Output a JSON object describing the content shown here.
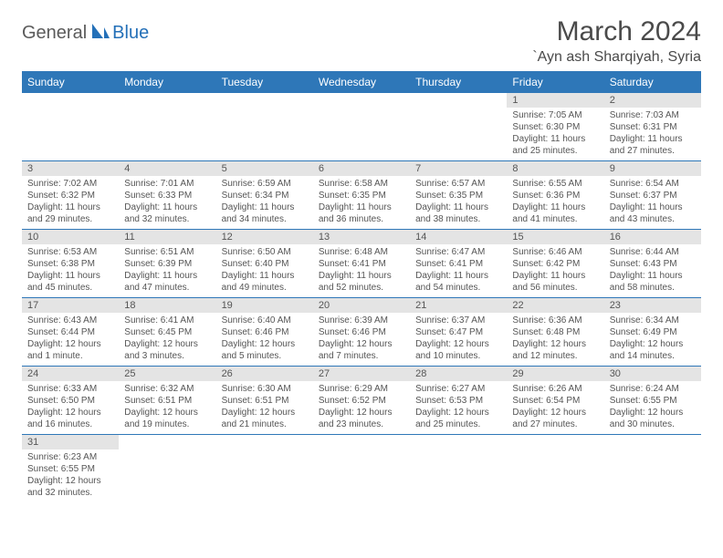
{
  "logo": {
    "part1": "General",
    "part2": "Blue"
  },
  "title": "March 2024",
  "location": "`Ayn ash Sharqiyah, Syria",
  "colors": {
    "header_bg": "#2e77b8",
    "header_fg": "#ffffff",
    "daynum_bg": "#e4e4e4",
    "row_border": "#2e77b8",
    "logo_blue": "#2470b8",
    "text": "#4a4a4a"
  },
  "weekdays": [
    "Sunday",
    "Monday",
    "Tuesday",
    "Wednesday",
    "Thursday",
    "Friday",
    "Saturday"
  ],
  "weeks": [
    [
      null,
      null,
      null,
      null,
      null,
      {
        "n": "1",
        "sr": "Sunrise: 7:05 AM",
        "ss": "Sunset: 6:30 PM",
        "dl": "Daylight: 11 hours and 25 minutes."
      },
      {
        "n": "2",
        "sr": "Sunrise: 7:03 AM",
        "ss": "Sunset: 6:31 PM",
        "dl": "Daylight: 11 hours and 27 minutes."
      }
    ],
    [
      {
        "n": "3",
        "sr": "Sunrise: 7:02 AM",
        "ss": "Sunset: 6:32 PM",
        "dl": "Daylight: 11 hours and 29 minutes."
      },
      {
        "n": "4",
        "sr": "Sunrise: 7:01 AM",
        "ss": "Sunset: 6:33 PM",
        "dl": "Daylight: 11 hours and 32 minutes."
      },
      {
        "n": "5",
        "sr": "Sunrise: 6:59 AM",
        "ss": "Sunset: 6:34 PM",
        "dl": "Daylight: 11 hours and 34 minutes."
      },
      {
        "n": "6",
        "sr": "Sunrise: 6:58 AM",
        "ss": "Sunset: 6:35 PM",
        "dl": "Daylight: 11 hours and 36 minutes."
      },
      {
        "n": "7",
        "sr": "Sunrise: 6:57 AM",
        "ss": "Sunset: 6:35 PM",
        "dl": "Daylight: 11 hours and 38 minutes."
      },
      {
        "n": "8",
        "sr": "Sunrise: 6:55 AM",
        "ss": "Sunset: 6:36 PM",
        "dl": "Daylight: 11 hours and 41 minutes."
      },
      {
        "n": "9",
        "sr": "Sunrise: 6:54 AM",
        "ss": "Sunset: 6:37 PM",
        "dl": "Daylight: 11 hours and 43 minutes."
      }
    ],
    [
      {
        "n": "10",
        "sr": "Sunrise: 6:53 AM",
        "ss": "Sunset: 6:38 PM",
        "dl": "Daylight: 11 hours and 45 minutes."
      },
      {
        "n": "11",
        "sr": "Sunrise: 6:51 AM",
        "ss": "Sunset: 6:39 PM",
        "dl": "Daylight: 11 hours and 47 minutes."
      },
      {
        "n": "12",
        "sr": "Sunrise: 6:50 AM",
        "ss": "Sunset: 6:40 PM",
        "dl": "Daylight: 11 hours and 49 minutes."
      },
      {
        "n": "13",
        "sr": "Sunrise: 6:48 AM",
        "ss": "Sunset: 6:41 PM",
        "dl": "Daylight: 11 hours and 52 minutes."
      },
      {
        "n": "14",
        "sr": "Sunrise: 6:47 AM",
        "ss": "Sunset: 6:41 PM",
        "dl": "Daylight: 11 hours and 54 minutes."
      },
      {
        "n": "15",
        "sr": "Sunrise: 6:46 AM",
        "ss": "Sunset: 6:42 PM",
        "dl": "Daylight: 11 hours and 56 minutes."
      },
      {
        "n": "16",
        "sr": "Sunrise: 6:44 AM",
        "ss": "Sunset: 6:43 PM",
        "dl": "Daylight: 11 hours and 58 minutes."
      }
    ],
    [
      {
        "n": "17",
        "sr": "Sunrise: 6:43 AM",
        "ss": "Sunset: 6:44 PM",
        "dl": "Daylight: 12 hours and 1 minute."
      },
      {
        "n": "18",
        "sr": "Sunrise: 6:41 AM",
        "ss": "Sunset: 6:45 PM",
        "dl": "Daylight: 12 hours and 3 minutes."
      },
      {
        "n": "19",
        "sr": "Sunrise: 6:40 AM",
        "ss": "Sunset: 6:46 PM",
        "dl": "Daylight: 12 hours and 5 minutes."
      },
      {
        "n": "20",
        "sr": "Sunrise: 6:39 AM",
        "ss": "Sunset: 6:46 PM",
        "dl": "Daylight: 12 hours and 7 minutes."
      },
      {
        "n": "21",
        "sr": "Sunrise: 6:37 AM",
        "ss": "Sunset: 6:47 PM",
        "dl": "Daylight: 12 hours and 10 minutes."
      },
      {
        "n": "22",
        "sr": "Sunrise: 6:36 AM",
        "ss": "Sunset: 6:48 PM",
        "dl": "Daylight: 12 hours and 12 minutes."
      },
      {
        "n": "23",
        "sr": "Sunrise: 6:34 AM",
        "ss": "Sunset: 6:49 PM",
        "dl": "Daylight: 12 hours and 14 minutes."
      }
    ],
    [
      {
        "n": "24",
        "sr": "Sunrise: 6:33 AM",
        "ss": "Sunset: 6:50 PM",
        "dl": "Daylight: 12 hours and 16 minutes."
      },
      {
        "n": "25",
        "sr": "Sunrise: 6:32 AM",
        "ss": "Sunset: 6:51 PM",
        "dl": "Daylight: 12 hours and 19 minutes."
      },
      {
        "n": "26",
        "sr": "Sunrise: 6:30 AM",
        "ss": "Sunset: 6:51 PM",
        "dl": "Daylight: 12 hours and 21 minutes."
      },
      {
        "n": "27",
        "sr": "Sunrise: 6:29 AM",
        "ss": "Sunset: 6:52 PM",
        "dl": "Daylight: 12 hours and 23 minutes."
      },
      {
        "n": "28",
        "sr": "Sunrise: 6:27 AM",
        "ss": "Sunset: 6:53 PM",
        "dl": "Daylight: 12 hours and 25 minutes."
      },
      {
        "n": "29",
        "sr": "Sunrise: 6:26 AM",
        "ss": "Sunset: 6:54 PM",
        "dl": "Daylight: 12 hours and 27 minutes."
      },
      {
        "n": "30",
        "sr": "Sunrise: 6:24 AM",
        "ss": "Sunset: 6:55 PM",
        "dl": "Daylight: 12 hours and 30 minutes."
      }
    ],
    [
      {
        "n": "31",
        "sr": "Sunrise: 6:23 AM",
        "ss": "Sunset: 6:55 PM",
        "dl": "Daylight: 12 hours and 32 minutes."
      },
      null,
      null,
      null,
      null,
      null,
      null
    ]
  ]
}
